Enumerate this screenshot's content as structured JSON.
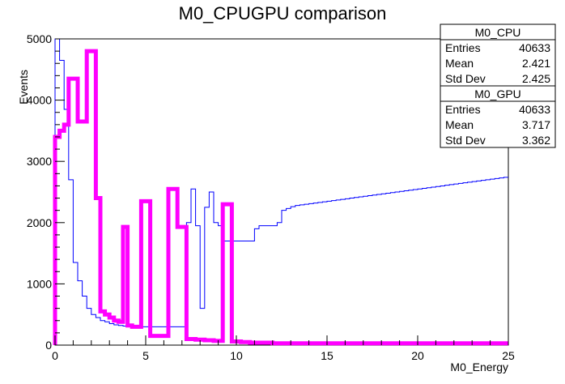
{
  "chart_data": {
    "type": "histogram",
    "title": "M0_CPUGPU comparison",
    "xlabel": "M0_Energy",
    "ylabel": "Events",
    "xlim": [
      0,
      25
    ],
    "ylim": [
      0,
      5000
    ],
    "x_ticks": [
      0,
      5,
      10,
      15,
      20,
      25
    ],
    "y_ticks": [
      0,
      1000,
      2000,
      3000,
      4000,
      5000
    ],
    "grid": false,
    "legend": "none",
    "bin_width": 0.25,
    "series": [
      {
        "name": "M0_CPU",
        "color": "#0000ff",
        "line_width": 1,
        "values": [
          5000,
          4650,
          3850,
          2700,
          1350,
          1050,
          800,
          600,
          500,
          450,
          400,
          380,
          350,
          330,
          320,
          310,
          300,
          310,
          300,
          300,
          300,
          300,
          300,
          300,
          300,
          300,
          300,
          300,
          300,
          2000,
          2550,
          1950,
          600,
          2250,
          2500,
          2000,
          1950,
          1700,
          1700,
          1700,
          1700,
          1700,
          1700,
          1700,
          1900,
          1950,
          1950,
          1950,
          1950,
          2000,
          2200,
          2230,
          2260,
          2280,
          2290,
          2300,
          2310,
          2320,
          2330,
          2340,
          2350,
          2360,
          2370,
          2380,
          2390,
          2400,
          2410,
          2420,
          2430,
          2440,
          2450,
          2460,
          2470,
          2480,
          2490,
          2500,
          2510,
          2520,
          2530,
          2540,
          2550,
          2560,
          2570,
          2580,
          2590,
          2600,
          2610,
          2620,
          2630,
          2640,
          2650,
          2660,
          2670,
          2680,
          2690,
          2700,
          2710,
          2720,
          2730,
          2740
        ]
      },
      {
        "name": "M0_GPU",
        "color": "#ff00ff",
        "line_width": 5,
        "values": [
          3400,
          3500,
          3600,
          4350,
          4350,
          3650,
          3650,
          4800,
          4800,
          2400,
          550,
          500,
          450,
          400,
          380,
          1930,
          320,
          300,
          300,
          2350,
          2350,
          150,
          150,
          150,
          150,
          2550,
          2550,
          1930,
          1930,
          100,
          100,
          90,
          90,
          80,
          80,
          70,
          70,
          2300,
          2300,
          60,
          60,
          50,
          50,
          40,
          40,
          40,
          40,
          40,
          30,
          30,
          30,
          30,
          30,
          30,
          30,
          30,
          30,
          30,
          30,
          30,
          30,
          30,
          30,
          30,
          30,
          30,
          30,
          30,
          30,
          30,
          30,
          30,
          30,
          30,
          30,
          30,
          30,
          30,
          30,
          30,
          30,
          30,
          30,
          30,
          30,
          30,
          30,
          30,
          30,
          30,
          30,
          30,
          30,
          30,
          30,
          30,
          30,
          30,
          30,
          30,
          30
        ]
      }
    ],
    "stats_boxes": [
      {
        "name": "M0_CPU",
        "rows": [
          {
            "label": "Entries",
            "value": "40633"
          },
          {
            "label": "Mean",
            "value": "2.421"
          },
          {
            "label": "Std Dev",
            "value": "2.425"
          }
        ]
      },
      {
        "name": "M0_GPU",
        "rows": [
          {
            "label": "Entries",
            "value": "40633"
          },
          {
            "label": "Mean",
            "value": "3.717"
          },
          {
            "label": "Std Dev",
            "value": "3.362"
          }
        ]
      }
    ]
  }
}
